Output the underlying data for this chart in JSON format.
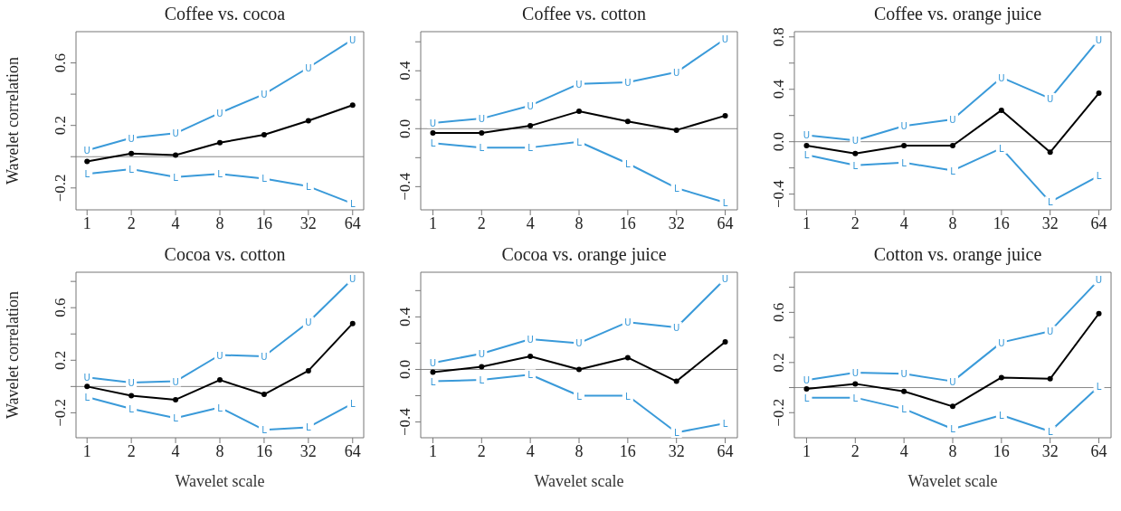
{
  "chart_data": [
    {
      "type": "line",
      "title": "Coffee vs. cocoa",
      "ylabel": "Wavelet correlation",
      "categories": [
        "1",
        "2",
        "4",
        "8",
        "16",
        "32",
        "64"
      ],
      "ylim": [
        -0.34,
        0.8
      ],
      "yticks": [
        {
          "value": -0.2,
          "label": "−0.2"
        },
        {
          "value": 0,
          "label": null
        },
        0.2,
        {
          "value": 0.4,
          "label": null
        },
        0.6
      ],
      "ref_lines": [
        {
          "axis": "y",
          "value": 0,
          "color": "#888888"
        }
      ],
      "series": [
        {
          "name": "U",
          "marker": "square",
          "color": "#3a9ad9",
          "values": [
            0.04,
            0.12,
            0.15,
            0.28,
            0.4,
            0.57,
            0.75
          ]
        },
        {
          "marker": "circle",
          "color": "#000000",
          "values": [
            -0.03,
            0.02,
            0.01,
            0.09,
            0.14,
            0.23,
            0.33
          ]
        },
        {
          "name": "L",
          "marker": "square",
          "color": "#3a9ad9",
          "values": [
            -0.11,
            -0.08,
            -0.13,
            -0.11,
            -0.14,
            -0.19,
            -0.3
          ]
        }
      ]
    },
    {
      "type": "line",
      "title": "Coffee vs. cotton",
      "categories": [
        "1",
        "2",
        "4",
        "8",
        "16",
        "32",
        "64"
      ],
      "ylim": [
        -0.56,
        0.67
      ],
      "yticks": [
        {
          "value": -0.4,
          "label": "−0.4"
        },
        {
          "value": -0.2,
          "label": null
        },
        {
          "value": 0,
          "label": "0.0"
        },
        {
          "value": 0.2,
          "label": null
        },
        0.4,
        {
          "value": 0.6,
          "label": null
        }
      ],
      "ref_lines": [
        {
          "axis": "y",
          "value": 0,
          "color": "#888888"
        }
      ],
      "series": [
        {
          "name": "U",
          "marker": "square",
          "color": "#3a9ad9",
          "values": [
            0.04,
            0.07,
            0.16,
            0.31,
            0.32,
            0.39,
            0.62
          ]
        },
        {
          "marker": "circle",
          "color": "#000000",
          "values": [
            -0.03,
            -0.03,
            0.02,
            0.12,
            0.05,
            -0.01,
            0.09
          ]
        },
        {
          "name": "L",
          "marker": "square",
          "color": "#3a9ad9",
          "values": [
            -0.1,
            -0.13,
            -0.13,
            -0.09,
            -0.24,
            -0.41,
            -0.51
          ]
        }
      ]
    },
    {
      "type": "line",
      "title": "Coffee vs. orange juice",
      "categories": [
        "1",
        "2",
        "4",
        "8",
        "16",
        "32",
        "64"
      ],
      "ylim": [
        -0.52,
        0.84
      ],
      "yticks": [
        {
          "value": -0.4,
          "label": "−0.4"
        },
        {
          "value": -0.2,
          "label": null
        },
        {
          "value": 0,
          "label": "0.0"
        },
        {
          "value": 0.2,
          "label": null
        },
        0.4,
        {
          "value": 0.6,
          "label": null
        },
        0.8
      ],
      "ref_lines": [
        {
          "axis": "y",
          "value": 0,
          "color": "#888888"
        }
      ],
      "series": [
        {
          "name": "U",
          "marker": "square",
          "color": "#3a9ad9",
          "values": [
            0.05,
            0.01,
            0.12,
            0.17,
            0.49,
            0.33,
            0.78
          ]
        },
        {
          "marker": "circle",
          "color": "#000000",
          "values": [
            -0.03,
            -0.09,
            -0.03,
            -0.03,
            0.24,
            -0.08,
            0.37
          ]
        },
        {
          "name": "L",
          "marker": "square",
          "color": "#3a9ad9",
          "values": [
            -0.1,
            -0.18,
            -0.16,
            -0.22,
            -0.05,
            -0.46,
            -0.26
          ]
        }
      ]
    },
    {
      "type": "line",
      "title": "Cocoa vs. cotton",
      "xlabel": "Wavelet scale",
      "ylabel": "Wavelet correlation",
      "categories": [
        "1",
        "2",
        "4",
        "8",
        "16",
        "32",
        "64"
      ],
      "ylim": [
        -0.39,
        0.87
      ],
      "yticks": [
        {
          "value": -0.2,
          "label": "−0.2"
        },
        {
          "value": 0,
          "label": null
        },
        0.2,
        {
          "value": 0.4,
          "label": null
        },
        0.6,
        {
          "value": 0.8,
          "label": null
        }
      ],
      "ref_lines": [
        {
          "axis": "y",
          "value": 0,
          "color": "#888888"
        }
      ],
      "series": [
        {
          "name": "U",
          "marker": "square",
          "color": "#3a9ad9",
          "values": [
            0.07,
            0.03,
            0.04,
            0.24,
            0.23,
            0.49,
            0.82
          ]
        },
        {
          "marker": "circle",
          "color": "#000000",
          "values": [
            0.0,
            -0.07,
            -0.1,
            0.05,
            -0.06,
            0.12,
            0.48
          ]
        },
        {
          "name": "L",
          "marker": "square",
          "color": "#3a9ad9",
          "values": [
            -0.08,
            -0.17,
            -0.24,
            -0.16,
            -0.33,
            -0.31,
            -0.13
          ]
        }
      ]
    },
    {
      "type": "line",
      "title": "Cocoa vs. orange juice",
      "xlabel": "Wavelet scale",
      "categories": [
        "1",
        "2",
        "4",
        "8",
        "16",
        "32",
        "64"
      ],
      "ylim": [
        -0.52,
        0.74
      ],
      "yticks": [
        {
          "value": -0.4,
          "label": "−0.4"
        },
        {
          "value": -0.2,
          "label": null
        },
        {
          "value": 0,
          "label": "0.0"
        },
        {
          "value": 0.2,
          "label": null
        },
        0.4,
        {
          "value": 0.6,
          "label": null
        }
      ],
      "ref_lines": [
        {
          "axis": "y",
          "value": 0,
          "color": "#888888"
        }
      ],
      "series": [
        {
          "name": "U",
          "marker": "square",
          "color": "#3a9ad9",
          "values": [
            0.05,
            0.12,
            0.23,
            0.2,
            0.36,
            0.32,
            0.69
          ]
        },
        {
          "marker": "circle",
          "color": "#000000",
          "values": [
            -0.02,
            0.02,
            0.1,
            0.0,
            0.09,
            -0.09,
            0.21
          ]
        },
        {
          "name": "L",
          "marker": "square",
          "color": "#3a9ad9",
          "values": [
            -0.09,
            -0.08,
            -0.04,
            -0.2,
            -0.2,
            -0.48,
            -0.41
          ]
        }
      ]
    },
    {
      "type": "line",
      "title": "Cotton vs. orange juice",
      "xlabel": "Wavelet scale",
      "categories": [
        "1",
        "2",
        "4",
        "8",
        "16",
        "32",
        "64"
      ],
      "ylim": [
        -0.4,
        0.92
      ],
      "yticks": [
        {
          "value": -0.2,
          "label": "−0.2"
        },
        {
          "value": 0,
          "label": null
        },
        0.2,
        {
          "value": 0.4,
          "label": null
        },
        0.6,
        {
          "value": 0.8,
          "label": null
        }
      ],
      "ref_lines": [
        {
          "axis": "y",
          "value": 0,
          "color": "#888888"
        }
      ],
      "series": [
        {
          "name": "U",
          "marker": "square",
          "color": "#3a9ad9",
          "values": [
            0.06,
            0.12,
            0.11,
            0.05,
            0.36,
            0.45,
            0.86
          ]
        },
        {
          "marker": "circle",
          "color": "#000000",
          "values": [
            -0.01,
            0.03,
            -0.03,
            -0.15,
            0.08,
            0.07,
            0.59
          ]
        },
        {
          "name": "L",
          "marker": "square",
          "color": "#3a9ad9",
          "values": [
            -0.08,
            -0.08,
            -0.17,
            -0.33,
            -0.22,
            -0.35,
            0.01
          ]
        }
      ]
    }
  ]
}
